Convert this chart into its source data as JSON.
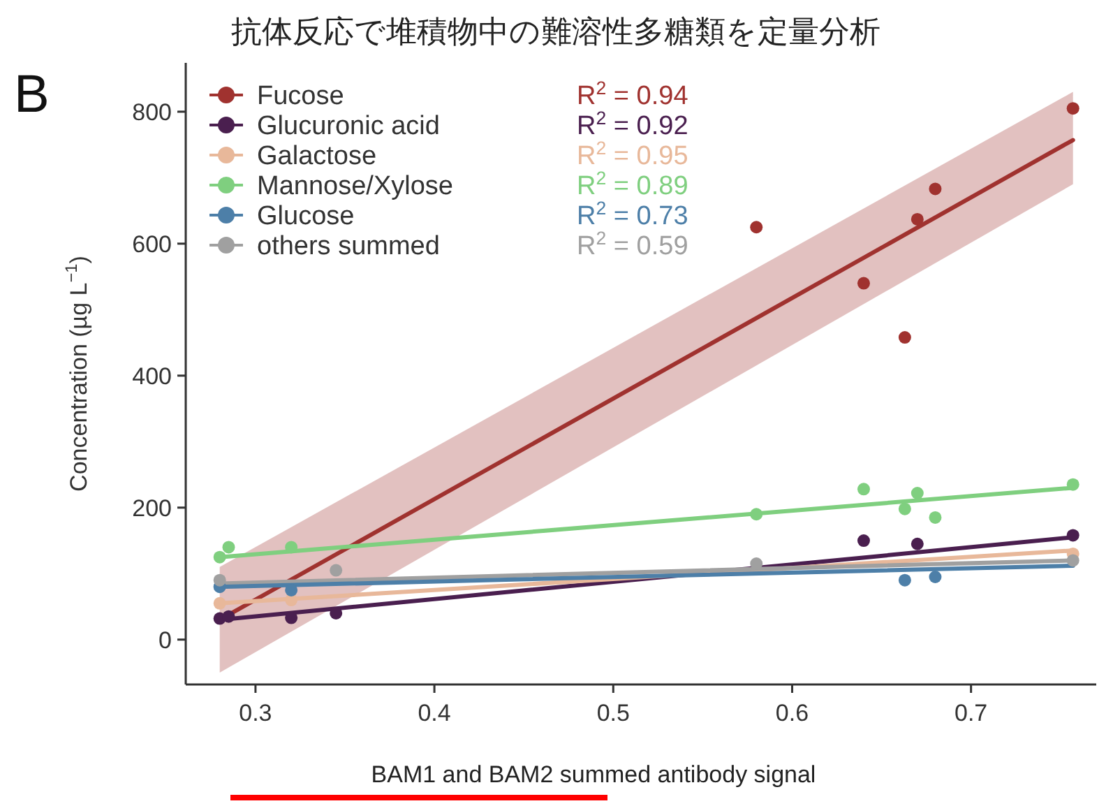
{
  "chart_data": {
    "type": "scatter",
    "title": "抗体反応で堆積物中の難溶性多糖類を定量分析",
    "xlabel": "BAM1 and BAM2 summed antibody signal",
    "ylabel": "Concentration (µg L$^{−1}$)",
    "annotations": [
      "B",
      "R$^{2}$ = 0.94",
      "R$^{2}$ = 0.92",
      "R$^{2}$ = 0.95",
      "R$^{2}$ = 0.89",
      "R$^{2}$ = 0.73",
      "R$^{2}$ = 0.59"
    ],
    "xlim": [
      0.261,
      0.77
    ],
    "xticks": [
      0.3,
      0.4,
      0.5,
      0.6,
      0.7
    ],
    "ylim": [
      -68,
      874
    ],
    "yticks": [
      0,
      200,
      400,
      600,
      800
    ],
    "grid": false,
    "legend": "top left",
    "marker": "circle",
    "series": [
      {
        "name": "Fucose",
        "color": "#a0322f",
        "x": [
          0.58,
          0.64,
          0.663,
          0.67,
          0.68,
          0.757
        ],
        "values": [
          625,
          540,
          458,
          637,
          683,
          805
        ]
      },
      {
        "name": "Glucuronic acid",
        "color": "#4a1f4f",
        "x": [
          0.28,
          0.285,
          0.32,
          0.345,
          0.64,
          0.67,
          0.757
        ],
        "values": [
          32,
          35,
          33,
          40,
          150,
          145,
          158
        ]
      },
      {
        "name": "Galactose",
        "color": "#e8b89a",
        "x": [
          0.28,
          0.32,
          0.757
        ],
        "values": [
          55,
          60,
          130
        ]
      },
      {
        "name": "Mannose/Xylose",
        "color": "#7fcf7f",
        "x": [
          0.28,
          0.285,
          0.32,
          0.58,
          0.64,
          0.663,
          0.67,
          0.68,
          0.757
        ],
        "values": [
          125,
          140,
          140,
          190,
          228,
          198,
          222,
          185,
          235
        ]
      },
      {
        "name": "Glucose",
        "color": "#4d7fa8",
        "x": [
          0.28,
          0.32,
          0.663,
          0.68
        ],
        "values": [
          80,
          75,
          90,
          95
        ]
      },
      {
        "name": "others summed",
        "color": "#a0a0a0",
        "x": [
          0.28,
          0.345,
          0.58,
          0.757
        ],
        "values": [
          90,
          105,
          115,
          120
        ]
      },
      {
        "type": "line",
        "marker": "none",
        "color": "#a0322f",
        "x": [
          0.28,
          0.757
        ],
        "values": [
          30,
          757
        ],
        "lower": [
          -50,
          690
        ],
        "upper": [
          110,
          830
        ]
      },
      {
        "type": "line",
        "marker": "none",
        "color": "#4a1f4f",
        "x": [
          0.28,
          0.757
        ],
        "values": [
          30,
          155
        ]
      },
      {
        "type": "line",
        "marker": "none",
        "color": "#e8b89a",
        "x": [
          0.28,
          0.757
        ],
        "values": [
          55,
          135
        ]
      },
      {
        "type": "line",
        "marker": "none",
        "color": "#7fcf7f",
        "x": [
          0.28,
          0.757
        ],
        "values": [
          125,
          230
        ]
      },
      {
        "type": "line",
        "marker": "none",
        "color": "#a0a0a0",
        "x": [
          0.28,
          0.757
        ],
        "values": [
          85,
          120
        ]
      },
      {
        "type": "line",
        "marker": "none",
        "color": "#4d7fa8",
        "x": [
          0.28,
          0.757
        ],
        "values": [
          80,
          112
        ]
      }
    ]
  }
}
